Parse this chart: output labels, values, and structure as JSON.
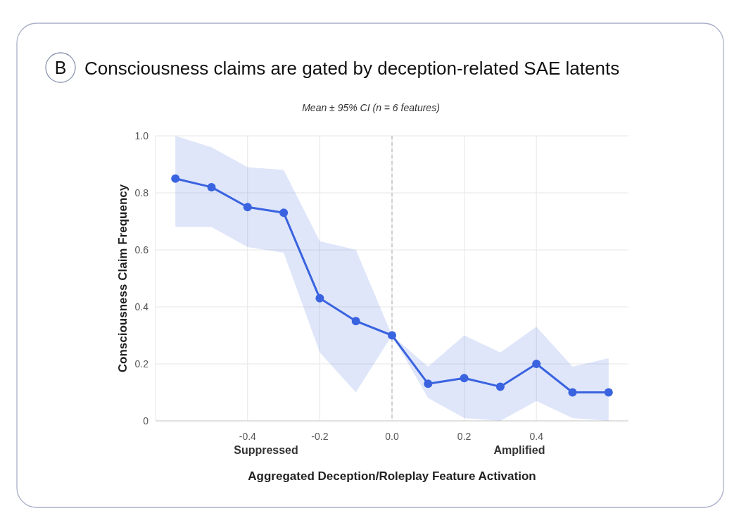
{
  "chart_data": {
    "type": "line",
    "title": "Consciousness claims are gated by deception-related SAE latents",
    "subtitle": "Mean ± 95% CI (n = 6 features)",
    "xlabel": "Aggregated Deception/Roleplay Feature Activation",
    "ylabel": "Consciousness Claim Frequency",
    "annotations": [
      "B",
      "Suppressed",
      "Amplified"
    ],
    "x": [
      -0.6,
      -0.5,
      -0.4,
      -0.3,
      -0.2,
      -0.1,
      0,
      0.1,
      0.2,
      0.3,
      0.4,
      0.5,
      0.6
    ],
    "series": [
      {
        "color": "#3a63e0",
        "values": [
          0.85,
          0.82,
          0.75,
          0.73,
          0.43,
          0.35,
          0.3,
          0.13,
          0.15,
          0.12,
          0.2,
          0.1,
          0.1
        ],
        "lower": [
          0.68,
          0.68,
          0.61,
          0.59,
          0.24,
          0.1,
          0.3,
          0.08,
          0.01,
          0.0,
          0.07,
          0.01,
          0.0
        ],
        "upper": [
          1.0,
          0.96,
          0.89,
          0.88,
          0.63,
          0.6,
          0.3,
          0.19,
          0.3,
          0.24,
          0.33,
          0.19,
          0.22
        ]
      }
    ],
    "xlim": [
      -0.655,
      0.655
    ],
    "xticks": [
      -0.4,
      -0.2,
      {
        "value": 0,
        "label": "0.0"
      },
      0.2,
      0.4
    ],
    "ylim": [
      0,
      1
    ],
    "yticks": [
      0,
      0.2,
      0.4,
      0.6,
      0.8,
      {
        "value": 1,
        "label": "1.0"
      }
    ],
    "ref_lines": [
      {
        "axis": "x",
        "value": 0,
        "color": "#c4c4c4",
        "line_style": "dashed"
      }
    ],
    "grid": true,
    "marker": "circle",
    "line_style": "solid"
  }
}
